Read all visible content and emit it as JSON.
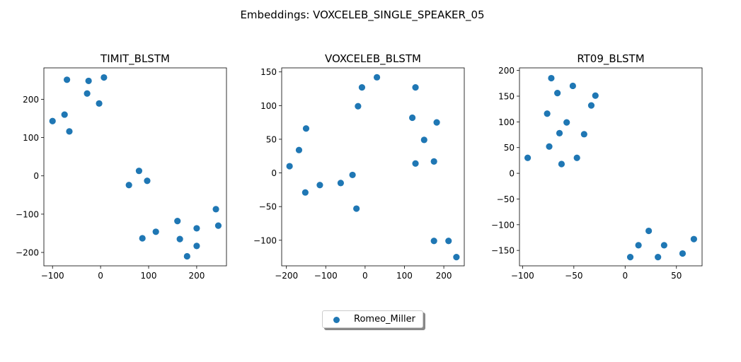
{
  "figure_title": "Embeddings: VOXCELEB_SINGLE_SPEAKER_05",
  "legend": {
    "label": "Romeo_Miller",
    "placement": "lower-center",
    "color": "#1f77b4"
  },
  "chart_data": [
    {
      "type": "scatter",
      "title": "TIMIT_BLSTM",
      "xlim": [
        -118,
        262
      ],
      "ylim": [
        -235,
        282
      ],
      "xticks": [
        -100,
        0,
        100,
        200
      ],
      "yticks": [
        -200,
        -100,
        0,
        100,
        200
      ],
      "series": [
        {
          "name": "Romeo_Miller",
          "color": "#1f77b4",
          "points": [
            [
              -70,
              251
            ],
            [
              -25,
              248
            ],
            [
              7,
              257
            ],
            [
              -28,
              215
            ],
            [
              -3,
              189
            ],
            [
              -100,
              143
            ],
            [
              -75,
              160
            ],
            [
              -65,
              116
            ],
            [
              80,
              13
            ],
            [
              97,
              -13
            ],
            [
              59,
              -24
            ],
            [
              240,
              -87
            ],
            [
              245,
              -130
            ],
            [
              160,
              -118
            ],
            [
              200,
              -137
            ],
            [
              165,
              -165
            ],
            [
              115,
              -146
            ],
            [
              87,
              -163
            ],
            [
              200,
              -183
            ],
            [
              180,
              -210
            ]
          ]
        }
      ]
    },
    {
      "type": "scatter",
      "title": "VOXCELEB_BLSTM",
      "xlim": [
        -212,
        252
      ],
      "ylim": [
        -138,
        156
      ],
      "xticks": [
        -200,
        -100,
        0,
        100,
        200
      ],
      "yticks": [
        -100,
        -50,
        0,
        50,
        100,
        150
      ],
      "series": [
        {
          "name": "Romeo_Miller",
          "color": "#1f77b4",
          "points": [
            [
              30,
              142
            ],
            [
              128,
              127
            ],
            [
              -8,
              127
            ],
            [
              -18,
              99
            ],
            [
              120,
              82
            ],
            [
              182,
              75
            ],
            [
              -150,
              66
            ],
            [
              -168,
              34
            ],
            [
              150,
              49
            ],
            [
              -192,
              10
            ],
            [
              128,
              14
            ],
            [
              175,
              17
            ],
            [
              -115,
              -18
            ],
            [
              -62,
              -15
            ],
            [
              -32,
              -3
            ],
            [
              -152,
              -29
            ],
            [
              -22,
              -53
            ],
            [
              175,
              -101
            ],
            [
              212,
              -101
            ],
            [
              232,
              -125
            ]
          ]
        }
      ]
    },
    {
      "type": "scatter",
      "title": "RT09_BLSTM",
      "xlim": [
        -103,
        75
      ],
      "ylim": [
        -180,
        205
      ],
      "xticks": [
        -100,
        -50,
        0,
        50
      ],
      "yticks": [
        -150,
        -100,
        -50,
        0,
        50,
        100,
        150,
        200
      ],
      "series": [
        {
          "name": "Romeo_Miller",
          "color": "#1f77b4",
          "points": [
            [
              -72,
              185
            ],
            [
              -51,
              170
            ],
            [
              -66,
              156
            ],
            [
              -29,
              151
            ],
            [
              -33,
              132
            ],
            [
              -76,
              116
            ],
            [
              -57,
              99
            ],
            [
              -64,
              78
            ],
            [
              -40,
              76
            ],
            [
              -74,
              52
            ],
            [
              -47,
              30
            ],
            [
              -95,
              30
            ],
            [
              -62,
              18
            ],
            [
              23,
              -112
            ],
            [
              13,
              -140
            ],
            [
              38,
              -140
            ],
            [
              67,
              -128
            ],
            [
              56,
              -156
            ],
            [
              5,
              -163
            ],
            [
              32,
              -163
            ]
          ]
        }
      ]
    }
  ]
}
